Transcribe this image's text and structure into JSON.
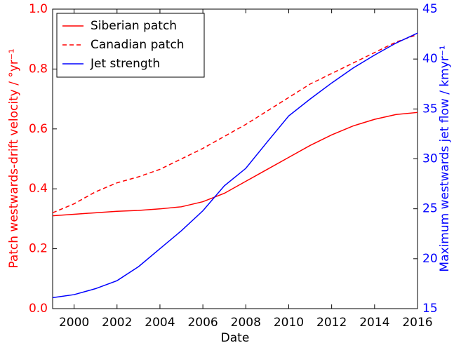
{
  "chart_data": {
    "type": "line",
    "xlabel": "Date",
    "ylabel": "Patch westwards-drift velocity / °yr⁻¹",
    "y2label": "Maximum westwards jet flow / kmyr⁻¹",
    "x": [
      1999,
      2000,
      2001,
      2002,
      2003,
      2004,
      2005,
      2006,
      2007,
      2008,
      2009,
      2010,
      2011,
      2012,
      2013,
      2014,
      2015,
      2016
    ],
    "series": [
      {
        "name": "Siberian patch",
        "color": "#ff0000",
        "linestyle": "solid",
        "values": [
          0.31,
          0.315,
          0.32,
          0.325,
          0.328,
          0.333,
          0.34,
          0.357,
          0.385,
          0.425,
          0.465,
          0.505,
          0.545,
          0.58,
          0.61,
          0.632,
          0.648,
          0.655
        ]
      },
      {
        "name": "Canadian patch",
        "color": "#ff0000",
        "linestyle": "dashed",
        "values": [
          0.32,
          0.35,
          0.39,
          0.42,
          0.44,
          0.465,
          0.5,
          0.535,
          0.575,
          0.615,
          0.66,
          0.705,
          0.75,
          0.785,
          0.82,
          0.855,
          0.89,
          0.915
        ]
      },
      {
        "name": "Jet strength",
        "color": "#0000ff",
        "linestyle": "solid",
        "axis": "y2",
        "values": [
          16.1,
          16.4,
          17,
          17.8,
          19.2,
          21,
          22.8,
          24.8,
          27.3,
          29.05,
          31.7,
          34.3,
          36,
          37.6,
          39.1,
          40.4,
          41.6,
          42.6
        ]
      }
    ],
    "xlim": [
      1999,
      2016
    ],
    "xticks": [
      2000,
      2002,
      2004,
      2006,
      2008,
      2010,
      2012,
      2014,
      2016
    ],
    "ylim": [
      0,
      1
    ],
    "yticks": [
      {
        "value": 0,
        "label": "0.0"
      },
      0.2,
      0.4,
      0.6,
      0.8,
      {
        "value": 1,
        "label": "1.0"
      }
    ],
    "y2lim": [
      15,
      45
    ],
    "y2ticks": [
      15,
      20,
      25,
      30,
      35,
      40,
      45
    ],
    "ycolor": "#ff0000",
    "y2color": "#0000ff",
    "legend": "upper left"
  }
}
